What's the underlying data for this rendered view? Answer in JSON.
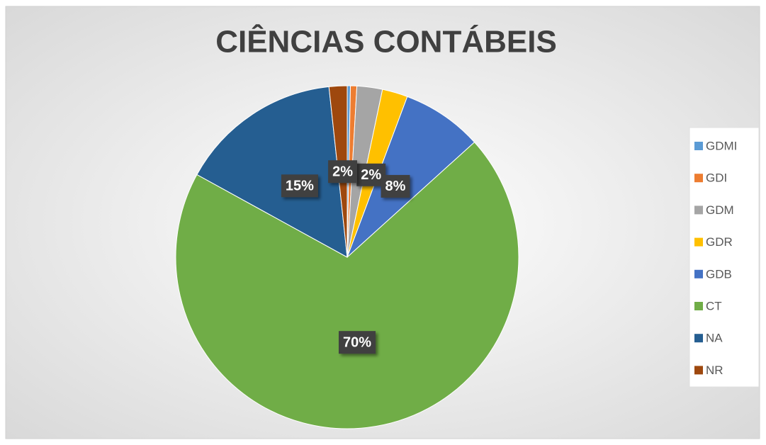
{
  "chart_data": {
    "type": "pie",
    "title": "CIÊNCIAS CONTÁBEIS",
    "categories": [
      "GDMI",
      "GDI",
      "GDM",
      "GDR",
      "GDB",
      "CT",
      "NA",
      "NR"
    ],
    "values": [
      0.3,
      0.6,
      2.4,
      2.4,
      7.6,
      69.7,
      15.3,
      1.7
    ],
    "value_labels": [
      null,
      null,
      null,
      "2%",
      "8%",
      "70%",
      "15%",
      "2%"
    ],
    "colors": [
      "#5b9bd5",
      "#ed7d31",
      "#a5a5a5",
      "#ffc000",
      "#4472c4",
      "#70ad47",
      "#255e91",
      "#9e480e"
    ],
    "legend": "right"
  }
}
